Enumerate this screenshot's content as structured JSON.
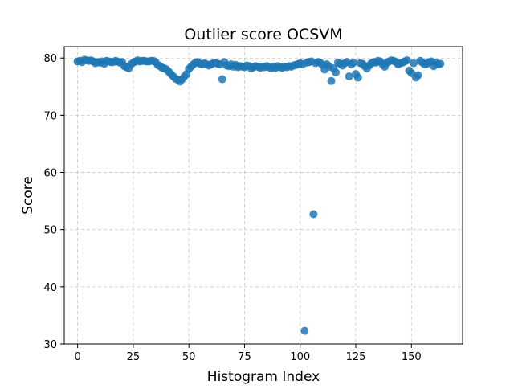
{
  "chart_data": {
    "type": "scatter",
    "title": "Outlier score OCSVM",
    "xlabel": "Histogram Index",
    "ylabel": "Score",
    "xlim": [
      -6,
      173
    ],
    "ylim": [
      30,
      82
    ],
    "xticks": [
      0,
      25,
      50,
      75,
      100,
      125,
      150
    ],
    "yticks": [
      30,
      40,
      50,
      60,
      70,
      80
    ],
    "grid": true,
    "marker_color": "#1f77b4",
    "x": [
      0,
      1,
      2,
      3,
      4,
      5,
      6,
      7,
      8,
      9,
      10,
      11,
      12,
      13,
      14,
      15,
      16,
      17,
      18,
      19,
      20,
      21,
      22,
      23,
      24,
      25,
      26,
      27,
      28,
      29,
      30,
      31,
      32,
      33,
      34,
      35,
      36,
      37,
      38,
      39,
      40,
      41,
      42,
      43,
      44,
      45,
      46,
      47,
      48,
      49,
      50,
      51,
      52,
      53,
      54,
      55,
      56,
      57,
      58,
      59,
      60,
      61,
      62,
      63,
      64,
      65,
      66,
      67,
      68,
      69,
      70,
      71,
      72,
      73,
      74,
      75,
      76,
      77,
      78,
      79,
      80,
      81,
      82,
      83,
      84,
      85,
      86,
      87,
      88,
      89,
      90,
      91,
      92,
      93,
      94,
      95,
      96,
      97,
      98,
      99,
      100,
      101,
      102,
      103,
      104,
      105,
      106,
      107,
      108,
      109,
      110,
      111,
      112,
      113,
      114,
      115,
      116,
      117,
      118,
      119,
      120,
      121,
      122,
      123,
      124,
      125,
      126,
      127,
      128,
      129,
      130,
      131,
      132,
      133,
      134,
      135,
      136,
      137,
      138,
      139,
      140,
      141,
      142,
      143,
      144,
      145,
      146,
      147,
      148,
      149,
      150,
      151,
      152,
      153,
      154,
      155,
      156,
      157,
      158,
      159,
      160,
      161,
      162,
      163
    ],
    "y": [
      79.4,
      79.5,
      79.3,
      79.7,
      79.6,
      79.5,
      79.6,
      79.4,
      79.1,
      79.3,
      79.2,
      79.4,
      79.0,
      79.5,
      79.4,
      79.3,
      79.3,
      79.5,
      79.4,
      79.2,
      79.3,
      78.6,
      78.4,
      78.2,
      78.9,
      79.2,
      79.4,
      79.6,
      79.4,
      79.5,
      79.5,
      79.4,
      79.4,
      79.5,
      79.5,
      79.3,
      78.8,
      78.6,
      78.3,
      78.2,
      78.0,
      77.6,
      77.2,
      76.8,
      76.4,
      76.2,
      75.9,
      76.3,
      76.8,
      77.2,
      78.1,
      78.5,
      78.9,
      79.2,
      79.3,
      79.0,
      78.9,
      79.1,
      78.9,
      78.7,
      78.9,
      79.1,
      79.2,
      79.0,
      78.9,
      76.3,
      79.3,
      78.7,
      78.6,
      78.9,
      78.5,
      78.8,
      78.4,
      78.6,
      78.5,
      78.4,
      78.7,
      78.6,
      78.2,
      78.4,
      78.6,
      78.5,
      78.3,
      78.5,
      78.4,
      78.6,
      78.4,
      78.2,
      78.5,
      78.3,
      78.6,
      78.4,
      78.3,
      78.5,
      78.4,
      78.6,
      78.5,
      78.7,
      78.8,
      78.9,
      79.1,
      78.9,
      32.3,
      79.2,
      79.3,
      79.4,
      52.7,
      79.1,
      79.3,
      79.2,
      78.8,
      78.0,
      78.9,
      78.5,
      76.0,
      78.2,
      77.5,
      79.2,
      79.0,
      78.7,
      79.1,
      79.3,
      76.8,
      78.9,
      79.2,
      77.2,
      76.6,
      79.1,
      79.0,
      78.6,
      78.2,
      78.7,
      79.1,
      79.3,
      79.2,
      79.5,
      79.4,
      78.9,
      78.5,
      79.2,
      79.4,
      79.6,
      79.5,
      79.3,
      78.9,
      79.1,
      79.2,
      79.4,
      79.6,
      77.8,
      77.4,
      79.1,
      76.6,
      77.0,
      79.5,
      79.2,
      78.9,
      79.0,
      79.3,
      79.4,
      78.6,
      79.2,
      78.9,
      79.0
    ]
  }
}
